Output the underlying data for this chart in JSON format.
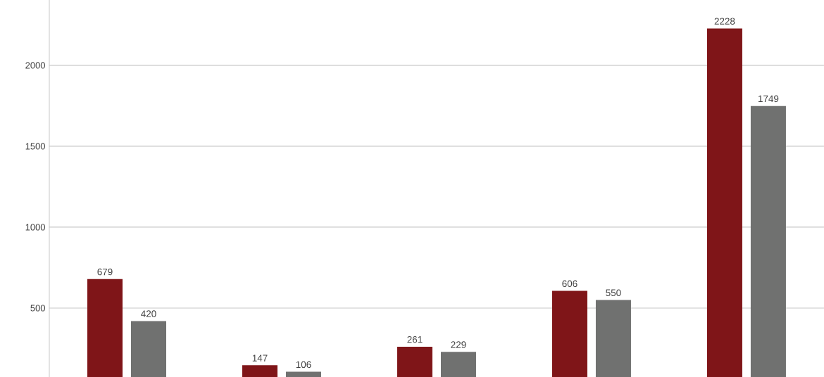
{
  "chart_data": {
    "type": "bar",
    "categories": [
      null,
      null,
      null,
      null,
      null
    ],
    "series": [
      {
        "color": "#7f1518",
        "values": [
          679,
          147,
          261,
          606,
          2228
        ]
      },
      {
        "color": "#707170",
        "values": [
          420,
          106,
          229,
          550,
          1749
        ]
      }
    ],
    "ylim": [
      74,
      2404
    ],
    "yticks": [
      500,
      1000,
      1500,
      2000
    ],
    "grid": "y",
    "data_labels": true,
    "tick_labels": "y"
  }
}
